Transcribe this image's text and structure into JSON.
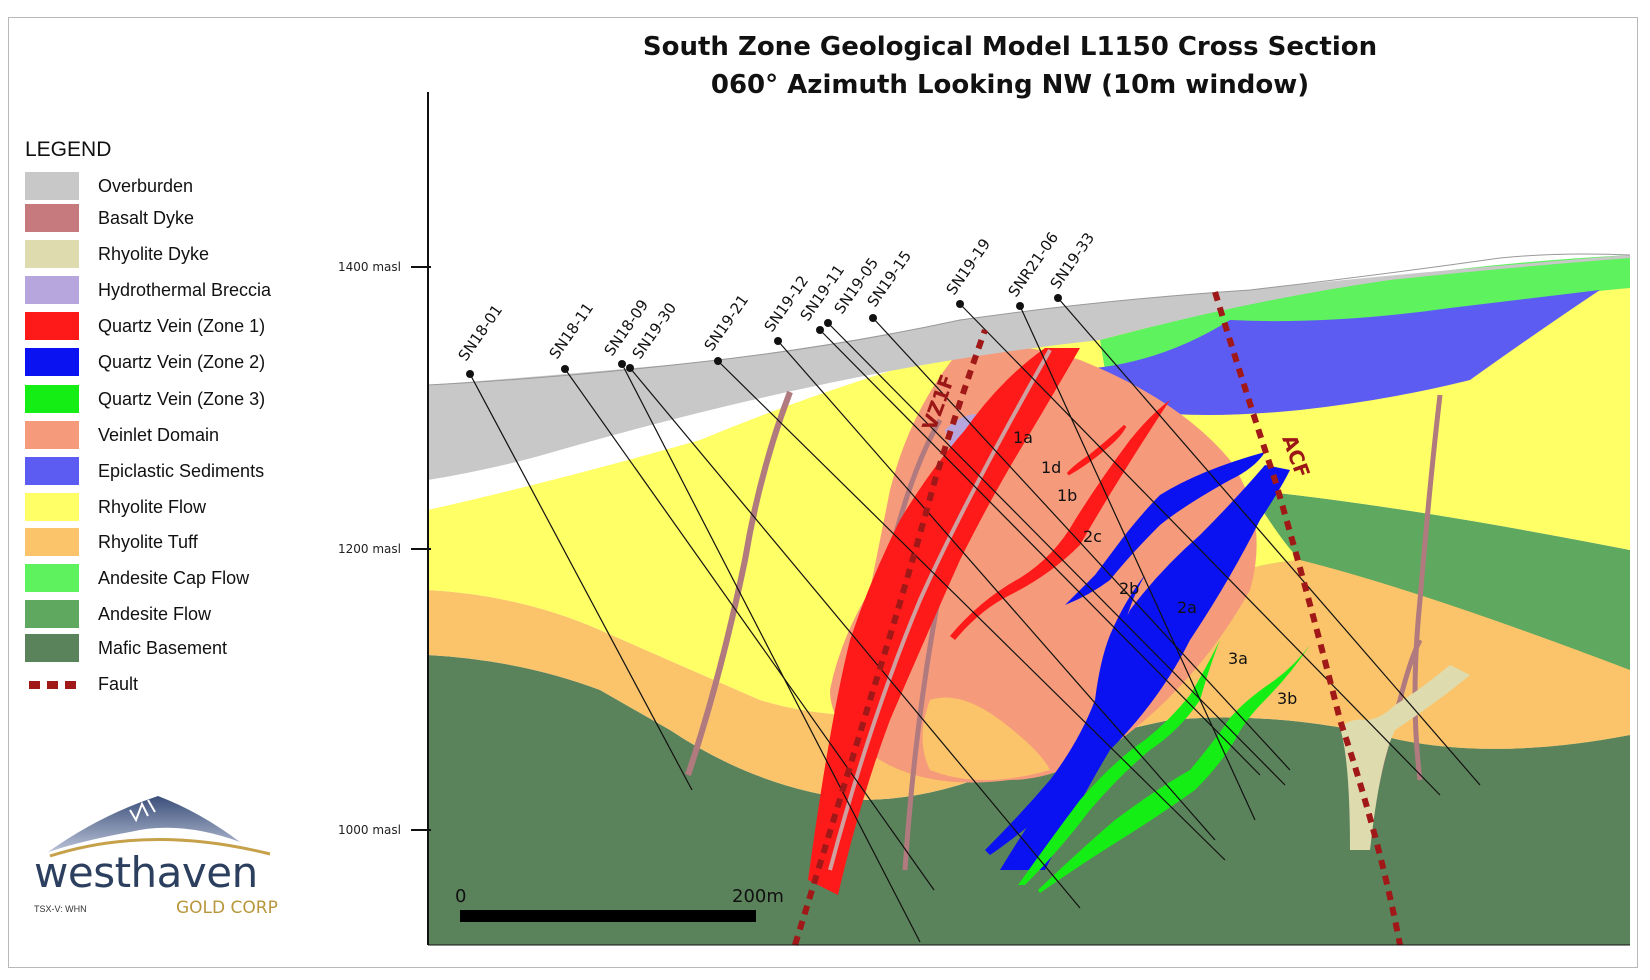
{
  "title": {
    "line1": "South Zone Geological Model L1150 Cross Section",
    "line2": "060° Azimuth Looking NW (10m window)"
  },
  "legend": {
    "title": "LEGEND",
    "items": [
      {
        "label": "Overburden",
        "color": "#c8c8c8"
      },
      {
        "label": "Basalt Dyke",
        "color": "#c77a7e"
      },
      {
        "label": "Rhyolite Dyke",
        "color": "#dedcaf"
      },
      {
        "label": "Hydrothermal Breccia",
        "color": "#b7a6dd"
      },
      {
        "label": "Quartz Vein (Zone 1)",
        "color": "#ff1a1a"
      },
      {
        "label": "Quartz Vein (Zone 2)",
        "color": "#0a12f2"
      },
      {
        "label": "Quartz Vein (Zone 3)",
        "color": "#14ee14"
      },
      {
        "label": "Veinlet Domain",
        "color": "#f59a7a"
      },
      {
        "label": "Epiclastic Sediments",
        "color": "#5c5cf2"
      },
      {
        "label": "Rhyolite Flow",
        "color": "#ffff66"
      },
      {
        "label": "Rhyolite Tuff",
        "color": "#fbc46b"
      },
      {
        "label": "Andesite Cap Flow",
        "color": "#5ef25e"
      },
      {
        "label": "Andesite Flow",
        "color": "#5fa85f"
      },
      {
        "label": "Mafic Basement",
        "color": "#5b835b"
      },
      {
        "label": "Fault",
        "color": "#a01818"
      }
    ]
  },
  "elevations": [
    "1400 masl",
    "1200 masl",
    "1000 masl"
  ],
  "drillholes": [
    "SN18-01",
    "SN18-11",
    "SN18-09",
    "SN19-30",
    "SN19-21",
    "SN19-12",
    "SN19-11",
    "SN19-05",
    "SN19-15",
    "SN19-19",
    "SNR21-06",
    "SN19-33"
  ],
  "faults": [
    "VZ1F",
    "ACF"
  ],
  "zones": [
    "1a",
    "1d",
    "1b",
    "2c",
    "2b",
    "2a",
    "3a",
    "3b"
  ],
  "scale": {
    "start": "0",
    "end": "200m"
  },
  "logo": {
    "name": "westhaven",
    "subtitle": "GOLD CORP",
    "ticker": "TSX-V: WHN"
  }
}
